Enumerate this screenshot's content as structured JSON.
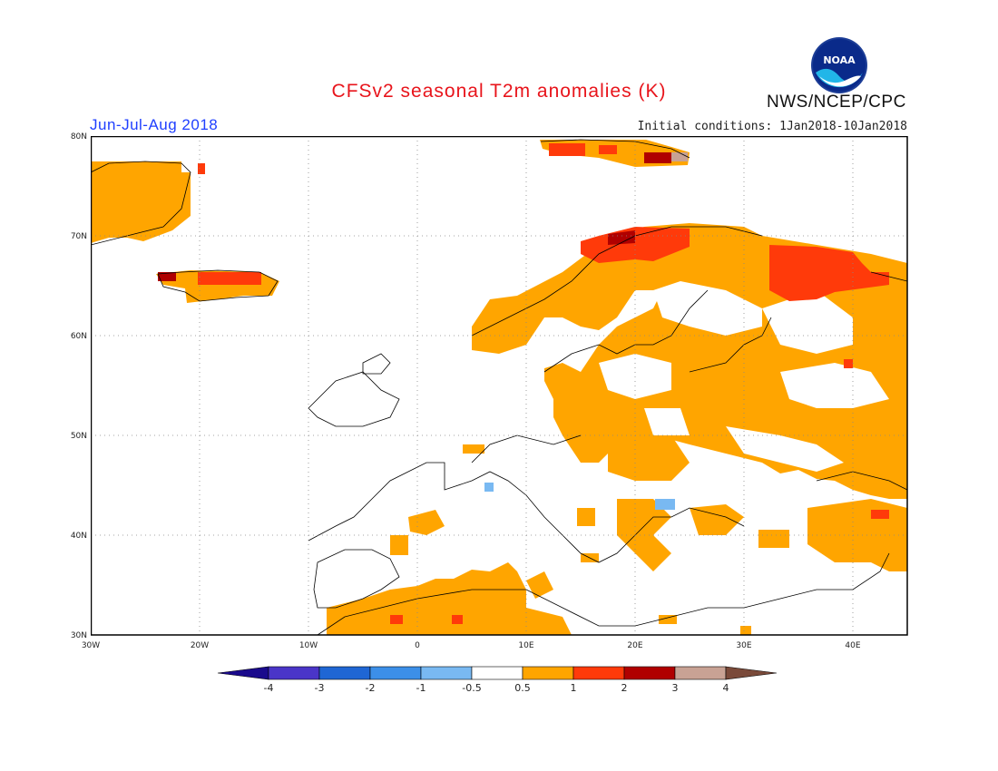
{
  "header": {
    "title": "CFSv2 seasonal T2m anomalies (K)",
    "period": "Jun-Jul-Aug 2018",
    "initial_conditions": "Initial conditions: 1Jan2018-10Jan2018",
    "agency": "NWS/NCEP/CPC",
    "logo_text": "NOAA"
  },
  "map": {
    "lat_labels": [
      "80N",
      "70N",
      "60N",
      "50N",
      "40N",
      "30N"
    ],
    "lon_labels": [
      "30W",
      "20W",
      "10W",
      "0",
      "10E",
      "20E",
      "30E",
      "40E"
    ],
    "domain": "Europe, 30W-45E, 30N-80N",
    "grid": "dotted, every 10 degrees"
  },
  "colorbar": {
    "labels": [
      "-4",
      "-3",
      "-2",
      "-1",
      "-0.5",
      "0.5",
      "1",
      "2",
      "3",
      "4"
    ],
    "colors": [
      "#1a0a8c",
      "#4a35c8",
      "#1f66d4",
      "#3c8fe8",
      "#79b9f2",
      "#ffffff",
      "#ffa500",
      "#ff3a0a",
      "#b00000",
      "#c8a294",
      "#7a4a3a"
    ]
  }
}
